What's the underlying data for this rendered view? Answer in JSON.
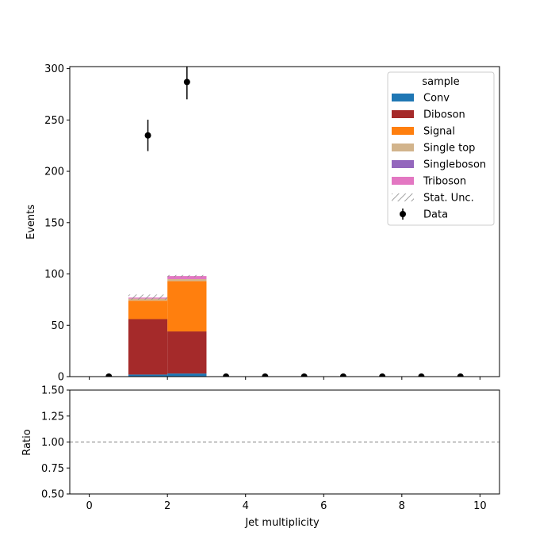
{
  "chart_data": {
    "type": "bar",
    "stacked": true,
    "x_bins": [
      [
        1,
        2
      ],
      [
        2,
        3
      ]
    ],
    "series": [
      {
        "name": "Conv",
        "color": "#1f77b4",
        "values": [
          2,
          3
        ]
      },
      {
        "name": "Diboson",
        "color": "#a52a2a",
        "values": [
          54,
          41
        ]
      },
      {
        "name": "Signal",
        "color": "#ff7f0e",
        "values": [
          18,
          49
        ]
      },
      {
        "name": "Single top",
        "color": "#d2b48c",
        "values": [
          2,
          2
        ]
      },
      {
        "name": "Singleboson",
        "color": "#9467bd",
        "values": [
          0,
          0
        ]
      },
      {
        "name": "Triboson",
        "color": "#e377c2",
        "values": [
          1,
          3
        ]
      }
    ],
    "stat_unc": {
      "label": "Stat. Unc.",
      "bins": [
        [
          1,
          2,
          75,
          80
        ],
        [
          2,
          3,
          97,
          99
        ]
      ]
    },
    "data": {
      "name": "Data",
      "x": [
        0.5,
        1.5,
        2.5,
        3.5,
        4.5,
        5.5,
        6.5,
        7.5,
        8.5,
        9.5
      ],
      "y": [
        0,
        235,
        287,
        0,
        0,
        0,
        0,
        0,
        0,
        0
      ],
      "err": [
        0,
        15.3,
        16.9,
        0,
        0,
        0,
        0,
        0,
        0,
        0
      ]
    },
    "legend_title": "sample",
    "legend_position": "top-right",
    "ylabel": "Events",
    "ylim": [
      0,
      302
    ],
    "yticks": [
      "0",
      "50",
      "100",
      "150",
      "200",
      "250",
      "300"
    ],
    "xlabel": "Jet multiplicity",
    "xlim": [
      -0.5,
      10.5
    ],
    "xticks": [
      "0",
      "2",
      "4",
      "6",
      "8",
      "10"
    ],
    "ratio": {
      "ylabel": "Ratio",
      "ylim": [
        0.5,
        1.5
      ],
      "yticks": [
        "0.50",
        "0.75",
        "1.00",
        "1.25",
        "1.50"
      ],
      "reference_line": 1.0
    }
  }
}
